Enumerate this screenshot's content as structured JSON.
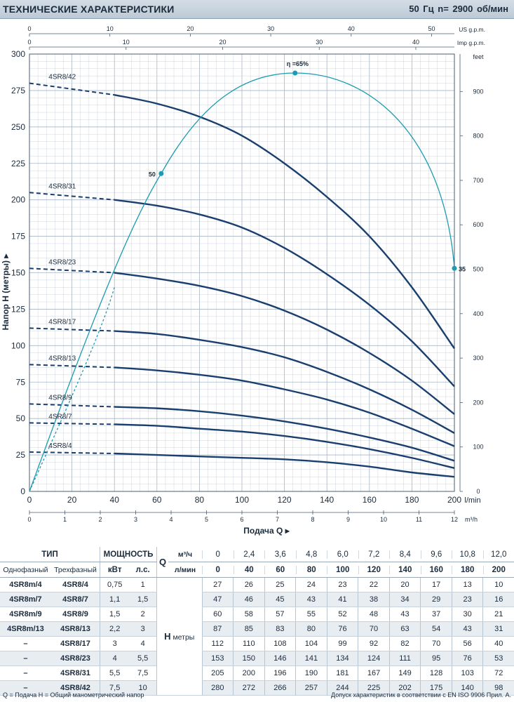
{
  "header": {
    "title": "ТЕХНИЧЕСКИЕ ХАРАКТЕРИСТИКИ",
    "freq": "50 Гц   n= 2900 об/мин"
  },
  "chart_data": {
    "type": "line",
    "x_lmin": [
      0,
      40,
      60,
      80,
      100,
      120,
      140,
      160,
      180,
      200
    ],
    "xlabel": "Подача Q",
    "ylabel": "Напор H (метры)",
    "xlim": [
      0,
      200
    ],
    "ylim": [
      0,
      300
    ],
    "x_unit": "l/min",
    "y_ticks": [
      0,
      25,
      50,
      75,
      100,
      125,
      150,
      175,
      200,
      225,
      250,
      275,
      300
    ],
    "x_ticks": [
      0,
      20,
      40,
      60,
      80,
      100,
      120,
      140,
      160,
      180,
      200
    ],
    "m3h_ticks": [
      0,
      1,
      2,
      3,
      4,
      5,
      6,
      7,
      8,
      9,
      10,
      11,
      12
    ],
    "m3h_unit": "m³/h",
    "usgpm_ticks": [
      0,
      10,
      20,
      30,
      40,
      50
    ],
    "usgpm_unit": "US g.p.m.",
    "impgpm_ticks": [
      0,
      10,
      20,
      30,
      40
    ],
    "impgpm_unit": "Imp g.p.m.",
    "feet_ticks": [
      0,
      100,
      200,
      300,
      400,
      500,
      600,
      700,
      800,
      900
    ],
    "feet_unit": "feet",
    "grid": true,
    "series": [
      {
        "name": "4SR8/42",
        "values": [
          280,
          272,
          266,
          257,
          244,
          225,
          202,
          175,
          140,
          98
        ]
      },
      {
        "name": "4SR8/31",
        "values": [
          205,
          200,
          196,
          190,
          181,
          167,
          149,
          128,
          103,
          72
        ]
      },
      {
        "name": "4SR8/23",
        "values": [
          153,
          150,
          146,
          141,
          134,
          124,
          111,
          95,
          76,
          53
        ]
      },
      {
        "name": "4SR8/17",
        "values": [
          112,
          110,
          108,
          104,
          99,
          92,
          82,
          70,
          56,
          40
        ]
      },
      {
        "name": "4SR8/13",
        "values": [
          87,
          85,
          83,
          80,
          76,
          70,
          63,
          54,
          43,
          31
        ]
      },
      {
        "name": "4SR8/9",
        "values": [
          60,
          58,
          57,
          55,
          52,
          48,
          43,
          37,
          30,
          21
        ]
      },
      {
        "name": "4SR8/7",
        "values": [
          47,
          46,
          45,
          43,
          41,
          38,
          34,
          29,
          23,
          16
        ]
      },
      {
        "name": "4SR8/4",
        "values": [
          27,
          26,
          25,
          24,
          23,
          22,
          20,
          17,
          13,
          10
        ]
      }
    ],
    "efficiency": {
      "points": [
        {
          "x": 62,
          "y": 218,
          "label": "50"
        },
        {
          "x": 125,
          "y": 287,
          "label": "η =65%"
        },
        {
          "x": 200,
          "y": 153,
          "label": "35"
        }
      ]
    }
  },
  "table": {
    "h_type": "ТИП",
    "h_power": "МОЩНОСТЬ",
    "q_letter": "Q",
    "col_single": "Однофазный",
    "col_three": "Трехфазный",
    "col_kw": "кВт",
    "col_hp": "л.с.",
    "unit_m3h": "м³/ч",
    "unit_lmin": "л/мин",
    "q_m3h": [
      "0",
      "2,4",
      "3,6",
      "4,8",
      "6,0",
      "7,2",
      "8,4",
      "9,6",
      "10,8",
      "12,0"
    ],
    "q_lmin": [
      "0",
      "40",
      "60",
      "80",
      "100",
      "120",
      "140",
      "160",
      "180",
      "200"
    ],
    "h_letter": "H",
    "h_unit": "метры",
    "rows": [
      {
        "single": "4SR8m/4",
        "three": "4SR8/4",
        "kw": "0,75",
        "hp": "1",
        "h": [
          "27",
          "26",
          "25",
          "24",
          "23",
          "22",
          "20",
          "17",
          "13",
          "10"
        ]
      },
      {
        "single": "4SR8m/7",
        "three": "4SR8/7",
        "kw": "1,1",
        "hp": "1,5",
        "h": [
          "47",
          "46",
          "45",
          "43",
          "41",
          "38",
          "34",
          "29",
          "23",
          "16"
        ]
      },
      {
        "single": "4SR8m/9",
        "three": "4SR8/9",
        "kw": "1,5",
        "hp": "2",
        "h": [
          "60",
          "58",
          "57",
          "55",
          "52",
          "48",
          "43",
          "37",
          "30",
          "21"
        ]
      },
      {
        "single": "4SR8m/13",
        "three": "4SR8/13",
        "kw": "2,2",
        "hp": "3",
        "h": [
          "87",
          "85",
          "83",
          "80",
          "76",
          "70",
          "63",
          "54",
          "43",
          "31"
        ]
      },
      {
        "single": "–",
        "three": "4SR8/17",
        "kw": "3",
        "hp": "4",
        "h": [
          "112",
          "110",
          "108",
          "104",
          "99",
          "92",
          "82",
          "70",
          "56",
          "40"
        ]
      },
      {
        "single": "–",
        "three": "4SR8/23",
        "kw": "4",
        "hp": "5,5",
        "h": [
          "153",
          "150",
          "146",
          "141",
          "134",
          "124",
          "111",
          "95",
          "76",
          "53"
        ]
      },
      {
        "single": "–",
        "three": "4SR8/31",
        "kw": "5,5",
        "hp": "7,5",
        "h": [
          "205",
          "200",
          "196",
          "190",
          "181",
          "167",
          "149",
          "128",
          "103",
          "72"
        ]
      },
      {
        "single": "–",
        "three": "4SR8/42",
        "kw": "7,5",
        "hp": "10",
        "h": [
          "280",
          "272",
          "266",
          "257",
          "244",
          "225",
          "202",
          "175",
          "140",
          "98"
        ]
      }
    ]
  },
  "footer": {
    "legend": "Q = Подача  H = Общий манометрический напор",
    "note": "Допуск характеристик в соответствии с EN ISO 9906 Прил. А."
  },
  "colors": {
    "curve": "#1a3f6e",
    "efficiency": "#1b9cb0",
    "grid": "#c3ccd6",
    "header": "#c8d4de"
  }
}
